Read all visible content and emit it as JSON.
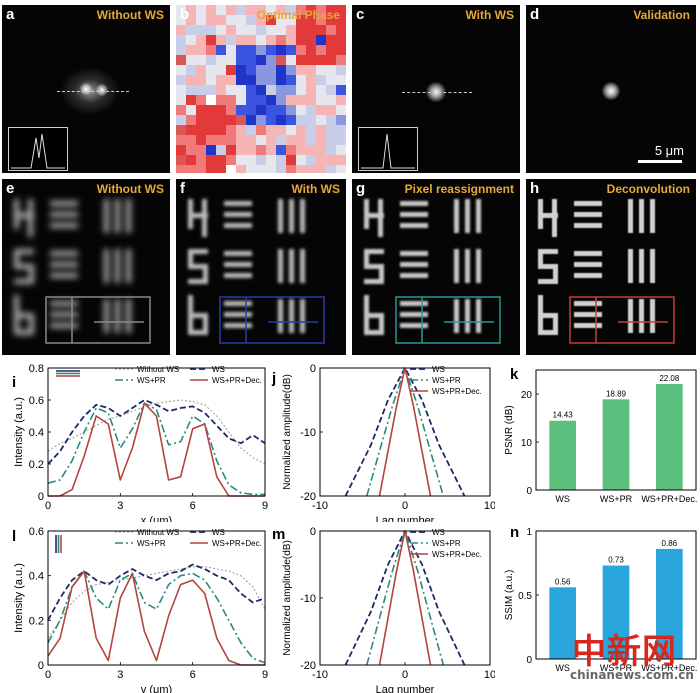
{
  "panels_top": [
    {
      "letter": "a",
      "title": "Without WS"
    },
    {
      "letter": "b",
      "title": "Optimal Phase"
    },
    {
      "letter": "c",
      "title": "With WS"
    },
    {
      "letter": "d",
      "title": "Validation"
    }
  ],
  "scale_bar": "5 μm",
  "panels_mid": [
    {
      "letter": "e",
      "title": "Without WS"
    },
    {
      "letter": "f",
      "title": "With WS"
    },
    {
      "letter": "g",
      "title": "Pixel reassignment"
    },
    {
      "letter": "h",
      "title": "Deconvolution"
    }
  ],
  "colors": {
    "without_ws": "#9a9a9a",
    "ws": "#1d2a6a",
    "ws_pr": "#2a8a80",
    "ws_pr_dec": "#b5433e",
    "psnr_bar": "#5bbf7e",
    "ssim_bar": "#2aa6dd",
    "title": "#e6a83a"
  },
  "chart_data": [
    {
      "id": "i",
      "type": "line",
      "xlabel": "x (μm)",
      "ylabel": "Intensity (a.u.)",
      "xlim": [
        0,
        9
      ],
      "ylim": [
        0,
        0.8
      ],
      "xticks": [
        0,
        3,
        6,
        9
      ],
      "yticks": [
        0,
        0.2,
        0.4,
        0.6,
        0.8
      ],
      "legend": [
        "Without WS",
        "WS",
        "WS+PR",
        "WS+PR+Dec."
      ],
      "series": [
        {
          "name": "Without WS",
          "x": [
            0,
            0.5,
            1,
            1.5,
            2,
            2.5,
            3,
            3.5,
            4,
            4.5,
            5,
            5.5,
            6,
            6.5,
            7,
            7.5,
            8,
            8.5,
            9
          ],
          "y": [
            0.28,
            0.33,
            0.36,
            0.4,
            0.44,
            0.48,
            0.5,
            0.53,
            0.56,
            0.58,
            0.59,
            0.6,
            0.59,
            0.57,
            0.5,
            0.4,
            0.3,
            0.24,
            0.2
          ]
        },
        {
          "name": "WS",
          "x": [
            0,
            0.5,
            1,
            1.5,
            2,
            2.5,
            3,
            3.5,
            4,
            4.5,
            5,
            5.5,
            6,
            6.5,
            7,
            7.5,
            8,
            8.5,
            9
          ],
          "y": [
            0.2,
            0.28,
            0.4,
            0.5,
            0.57,
            0.55,
            0.5,
            0.55,
            0.6,
            0.57,
            0.53,
            0.55,
            0.56,
            0.52,
            0.44,
            0.36,
            0.33,
            0.38,
            0.33
          ]
        },
        {
          "name": "WS+PR",
          "x": [
            0,
            0.5,
            1,
            1.5,
            2,
            2.5,
            3,
            3.5,
            4,
            4.5,
            5,
            5.5,
            6,
            6.5,
            7,
            7.5,
            8,
            8.5,
            9
          ],
          "y": [
            0.08,
            0.1,
            0.22,
            0.4,
            0.55,
            0.52,
            0.3,
            0.42,
            0.58,
            0.54,
            0.32,
            0.34,
            0.5,
            0.45,
            0.22,
            0.07,
            0.02,
            0.01,
            0.01
          ]
        },
        {
          "name": "WS+PR+Dec.",
          "x": [
            0,
            0.5,
            1,
            1.5,
            2,
            2.5,
            3,
            3.5,
            4,
            4.5,
            5,
            5.5,
            6,
            6.5,
            7,
            7.5,
            8,
            8.5,
            9
          ],
          "y": [
            0,
            0,
            0.04,
            0.25,
            0.5,
            0.45,
            0.1,
            0.3,
            0.58,
            0.5,
            0.1,
            0.12,
            0.42,
            0.45,
            0.12,
            0,
            0,
            0,
            0
          ]
        }
      ]
    },
    {
      "id": "j",
      "type": "line",
      "xlabel": "Lag number",
      "ylabel": "Normalized amplitude(dB)",
      "xlim": [
        -10,
        10
      ],
      "ylim": [
        -20,
        0
      ],
      "xticks": [
        -10,
        0,
        10
      ],
      "yticks": [
        0,
        -10,
        -20
      ],
      "legend": [
        "WS",
        "WS+PR",
        "WS+PR+Dec."
      ],
      "series": [
        {
          "name": "WS",
          "x": [
            -7,
            -4,
            -2,
            0,
            2,
            4,
            7
          ],
          "y": [
            -20,
            -12,
            -5,
            0,
            -5,
            -12,
            -20
          ]
        },
        {
          "name": "WS+PR",
          "x": [
            -4.5,
            -3,
            -1.5,
            0,
            1.5,
            3,
            4.5
          ],
          "y": [
            -20,
            -13,
            -6,
            0,
            -6,
            -13,
            -20
          ]
        },
        {
          "name": "WS+PR+Dec.",
          "x": [
            -3,
            -2,
            -1,
            0,
            1,
            2,
            3
          ],
          "y": [
            -20,
            -13,
            -6,
            0,
            -6,
            -13,
            -20
          ]
        }
      ]
    },
    {
      "id": "k",
      "type": "bar",
      "ylabel": "PSNR (dB)",
      "categories": [
        "WS",
        "WS+PR",
        "WS+PR+Dec."
      ],
      "values": [
        14.43,
        18.89,
        22.08
      ],
      "labels": [
        "14.43",
        "18.89",
        "22.08"
      ],
      "ylim": [
        0,
        25
      ],
      "yticks": [
        0,
        10,
        20
      ]
    },
    {
      "id": "l",
      "type": "line",
      "xlabel": "y (μm)",
      "ylabel": "Intensity (a.u.)",
      "xlim": [
        0,
        9
      ],
      "ylim": [
        0,
        0.6
      ],
      "xticks": [
        0,
        3,
        6,
        9
      ],
      "yticks": [
        0,
        0.2,
        0.4,
        0.6
      ],
      "legend": [
        "Without WS",
        "WS",
        "WS+PR",
        "WS+PR+Dec."
      ],
      "series": [
        {
          "name": "Without WS",
          "x": [
            0,
            0.5,
            1,
            1.5,
            2,
            2.5,
            3,
            3.5,
            4,
            4.5,
            5,
            5.5,
            6,
            6.5,
            7,
            7.5,
            8,
            8.5,
            9
          ],
          "y": [
            0.12,
            0.2,
            0.28,
            0.33,
            0.36,
            0.37,
            0.38,
            0.39,
            0.4,
            0.41,
            0.42,
            0.43,
            0.44,
            0.44,
            0.43,
            0.42,
            0.4,
            0.35,
            0.25
          ]
        },
        {
          "name": "WS",
          "x": [
            0,
            0.5,
            1,
            1.5,
            2,
            2.5,
            3,
            3.5,
            4,
            4.5,
            5,
            5.5,
            6,
            6.5,
            7,
            7.5,
            8,
            8.5,
            9
          ],
          "y": [
            0.2,
            0.3,
            0.38,
            0.42,
            0.38,
            0.36,
            0.4,
            0.43,
            0.4,
            0.38,
            0.41,
            0.42,
            0.45,
            0.43,
            0.4,
            0.38,
            0.32,
            0.28,
            0.3
          ]
        },
        {
          "name": "WS+PR",
          "x": [
            0,
            0.5,
            1,
            1.5,
            2,
            2.5,
            3,
            3.5,
            4,
            4.5,
            5,
            5.5,
            6,
            6.5,
            7,
            7.5,
            8,
            8.5,
            9
          ],
          "y": [
            0.1,
            0.2,
            0.35,
            0.42,
            0.3,
            0.25,
            0.38,
            0.41,
            0.28,
            0.25,
            0.36,
            0.4,
            0.41,
            0.38,
            0.3,
            0.2,
            0.1,
            0.03,
            0.01
          ]
        },
        {
          "name": "WS+PR+Dec.",
          "x": [
            0,
            0.5,
            1,
            1.5,
            2,
            2.5,
            3,
            3.5,
            4,
            4.5,
            5,
            5.5,
            6,
            6.5,
            7,
            7.5,
            8,
            8.5,
            9
          ],
          "y": [
            0.04,
            0.12,
            0.35,
            0.42,
            0.12,
            0.02,
            0.3,
            0.41,
            0.15,
            0.02,
            0.22,
            0.36,
            0.38,
            0.32,
            0.12,
            0.02,
            0,
            0,
            0
          ]
        }
      ]
    },
    {
      "id": "m",
      "type": "line",
      "xlabel": "Lag number",
      "ylabel": "Normalized amplitude(dB)",
      "xlim": [
        -10,
        10
      ],
      "ylim": [
        -20,
        0
      ],
      "xticks": [
        -10,
        0,
        10
      ],
      "yticks": [
        0,
        -10,
        -20
      ],
      "legend": [
        "WS",
        "WS+PR",
        "WS+PR+Dec."
      ],
      "series": [
        {
          "name": "WS",
          "x": [
            -7,
            -4,
            -2,
            0,
            2,
            4,
            7
          ],
          "y": [
            -20,
            -12,
            -5,
            0,
            -5,
            -12,
            -20
          ]
        },
        {
          "name": "WS+PR",
          "x": [
            -4.5,
            -3,
            -1.5,
            0,
            1.5,
            3,
            4.5
          ],
          "y": [
            -20,
            -13,
            -6,
            0,
            -6,
            -13,
            -20
          ]
        },
        {
          "name": "WS+PR+Dec.",
          "x": [
            -3,
            -2,
            -1,
            0,
            1,
            2,
            3
          ],
          "y": [
            -20,
            -13,
            -6,
            0,
            -6,
            -13,
            -20
          ]
        }
      ]
    },
    {
      "id": "n",
      "type": "bar",
      "ylabel": "SSIM (a.u.)",
      "categories": [
        "WS",
        "WS+PR",
        "WS+PR+Dec."
      ],
      "values": [
        0.56,
        0.73,
        0.86
      ],
      "labels": [
        "0.56",
        "0.73",
        "0.86"
      ],
      "ylim": [
        0,
        1.0
      ],
      "yticks": [
        0,
        0.5,
        1.0
      ]
    }
  ],
  "watermark": {
    "cn": "中新网",
    "url": "chinanews.com.cn"
  }
}
